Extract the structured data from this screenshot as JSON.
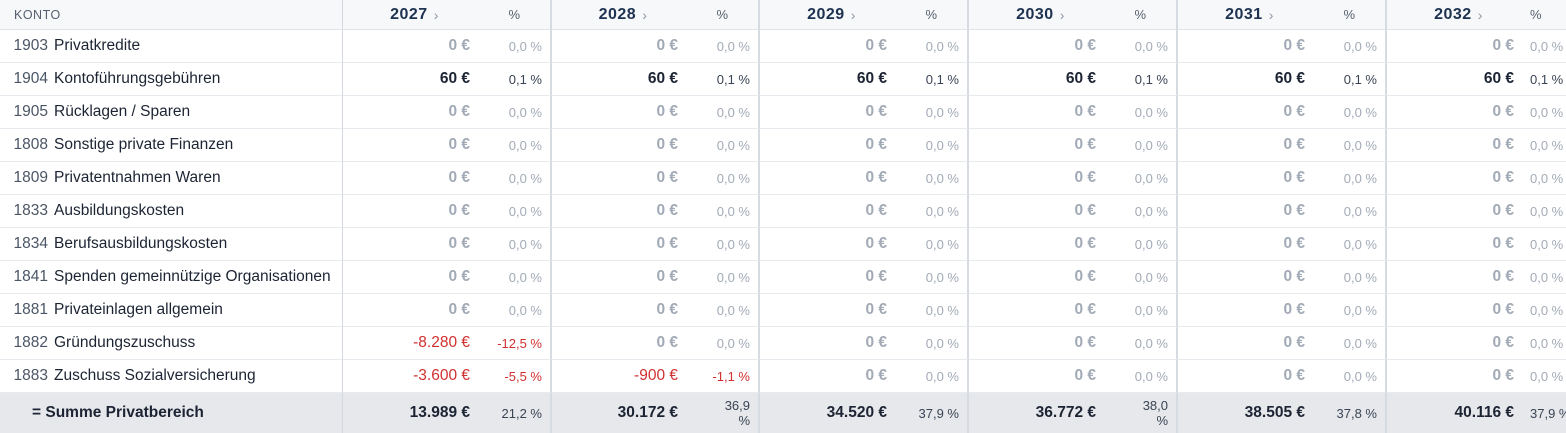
{
  "header": {
    "konto_label": "KONTO",
    "years": [
      {
        "label": "2027",
        "chevron": "›",
        "pct_label": "%"
      },
      {
        "label": "2028",
        "chevron": "›",
        "pct_label": "%"
      },
      {
        "label": "2029",
        "chevron": "›",
        "pct_label": "%"
      },
      {
        "label": "2030",
        "chevron": "›",
        "pct_label": "%"
      },
      {
        "label": "2031",
        "chevron": "›",
        "pct_label": "%"
      },
      {
        "label": "2032",
        "chevron": "›",
        "pct_label": "%"
      }
    ]
  },
  "rows": [
    {
      "num": "1903",
      "name": "Privatkredite",
      "cells": [
        [
          "0 €",
          "0,0 %"
        ],
        [
          "0 €",
          "0,0 %"
        ],
        [
          "0 €",
          "0,0 %"
        ],
        [
          "0 €",
          "0,0 %"
        ],
        [
          "0 €",
          "0,0 %"
        ],
        [
          "0 €",
          "0,0 %"
        ]
      ]
    },
    {
      "num": "1904",
      "name": "Kontoführungsgebühren",
      "cells": [
        [
          "60 €",
          "0,1 %"
        ],
        [
          "60 €",
          "0,1 %"
        ],
        [
          "60 €",
          "0,1 %"
        ],
        [
          "60 €",
          "0,1 %"
        ],
        [
          "60 €",
          "0,1 %"
        ],
        [
          "60 €",
          "0,1 %"
        ]
      ]
    },
    {
      "num": "1905",
      "name": "Rücklagen / Sparen",
      "cells": [
        [
          "0 €",
          "0,0 %"
        ],
        [
          "0 €",
          "0,0 %"
        ],
        [
          "0 €",
          "0,0 %"
        ],
        [
          "0 €",
          "0,0 %"
        ],
        [
          "0 €",
          "0,0 %"
        ],
        [
          "0 €",
          "0,0 %"
        ]
      ]
    },
    {
      "num": "1808",
      "name": "Sonstige private Finanzen",
      "cells": [
        [
          "0 €",
          "0,0 %"
        ],
        [
          "0 €",
          "0,0 %"
        ],
        [
          "0 €",
          "0,0 %"
        ],
        [
          "0 €",
          "0,0 %"
        ],
        [
          "0 €",
          "0,0 %"
        ],
        [
          "0 €",
          "0,0 %"
        ]
      ]
    },
    {
      "num": "1809",
      "name": "Privatentnahmen Waren",
      "cells": [
        [
          "0 €",
          "0,0 %"
        ],
        [
          "0 €",
          "0,0 %"
        ],
        [
          "0 €",
          "0,0 %"
        ],
        [
          "0 €",
          "0,0 %"
        ],
        [
          "0 €",
          "0,0 %"
        ],
        [
          "0 €",
          "0,0 %"
        ]
      ]
    },
    {
      "num": "1833",
      "name": "Ausbildungskosten",
      "cells": [
        [
          "0 €",
          "0,0 %"
        ],
        [
          "0 €",
          "0,0 %"
        ],
        [
          "0 €",
          "0,0 %"
        ],
        [
          "0 €",
          "0,0 %"
        ],
        [
          "0 €",
          "0,0 %"
        ],
        [
          "0 €",
          "0,0 %"
        ]
      ]
    },
    {
      "num": "1834",
      "name": "Berufsausbildungskosten",
      "cells": [
        [
          "0 €",
          "0,0 %"
        ],
        [
          "0 €",
          "0,0 %"
        ],
        [
          "0 €",
          "0,0 %"
        ],
        [
          "0 €",
          "0,0 %"
        ],
        [
          "0 €",
          "0,0 %"
        ],
        [
          "0 €",
          "0,0 %"
        ]
      ]
    },
    {
      "num": "1841",
      "name": "Spenden gemeinnützige Organisationen",
      "cells": [
        [
          "0 €",
          "0,0 %"
        ],
        [
          "0 €",
          "0,0 %"
        ],
        [
          "0 €",
          "0,0 %"
        ],
        [
          "0 €",
          "0,0 %"
        ],
        [
          "0 €",
          "0,0 %"
        ],
        [
          "0 €",
          "0,0 %"
        ]
      ]
    },
    {
      "num": "1881",
      "name": "Privateinlagen allgemein",
      "cells": [
        [
          "0 €",
          "0,0 %"
        ],
        [
          "0 €",
          "0,0 %"
        ],
        [
          "0 €",
          "0,0 %"
        ],
        [
          "0 €",
          "0,0 %"
        ],
        [
          "0 €",
          "0,0 %"
        ],
        [
          "0 €",
          "0,0 %"
        ]
      ]
    },
    {
      "num": "1882",
      "name": "Gründungszuschuss",
      "cells": [
        [
          "-8.280 €",
          "-12,5 %"
        ],
        [
          "0 €",
          "0,0 %"
        ],
        [
          "0 €",
          "0,0 %"
        ],
        [
          "0 €",
          "0,0 %"
        ],
        [
          "0 €",
          "0,0 %"
        ],
        [
          "0 €",
          "0,0 %"
        ]
      ]
    },
    {
      "num": "1883",
      "name": "Zuschuss Sozialversicherung",
      "cells": [
        [
          "-3.600 €",
          "-5,5 %"
        ],
        [
          "-900 €",
          "-1,1 %"
        ],
        [
          "0 €",
          "0,0 %"
        ],
        [
          "0 €",
          "0,0 %"
        ],
        [
          "0 €",
          "0,0 %"
        ],
        [
          "0 €",
          "0,0 %"
        ]
      ]
    }
  ],
  "total": {
    "label": "= Summe Privatbereich",
    "cells": [
      [
        "13.989 €",
        "21,2 %"
      ],
      [
        "30.172 €",
        "36,9 %"
      ],
      [
        "34.520 €",
        "37,9 %"
      ],
      [
        "36.772 €",
        "38,0 %"
      ],
      [
        "38.505 €",
        "37,8 %"
      ],
      [
        "40.116 €",
        "37,9 %"
      ]
    ]
  }
}
